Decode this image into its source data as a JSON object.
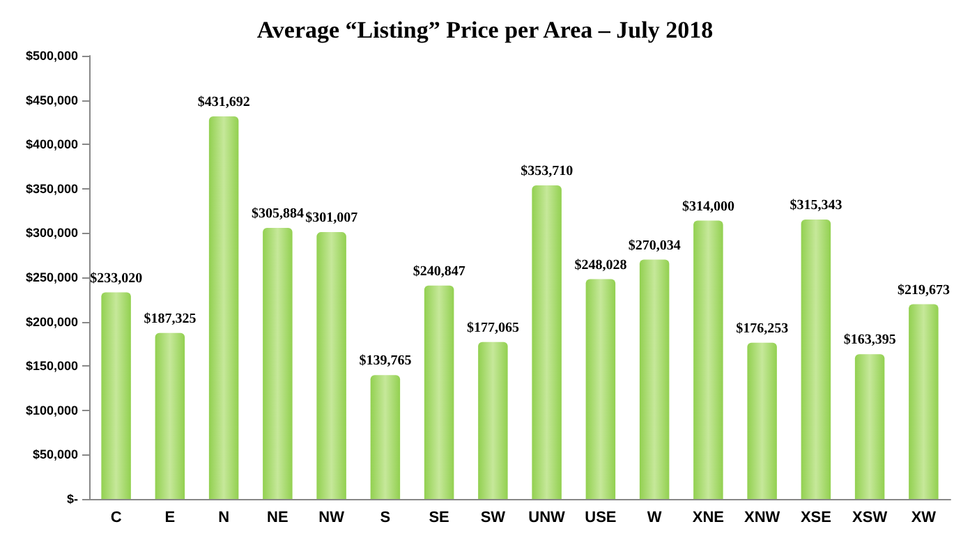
{
  "chart_data": {
    "type": "bar",
    "title": "Average “Listing” Price per Area – July 2018",
    "categories": [
      "C",
      "E",
      "N",
      "NE",
      "NW",
      "S",
      "SE",
      "SW",
      "UNW",
      "USE",
      "W",
      "XNE",
      "XNW",
      "XSE",
      "XSW",
      "XW"
    ],
    "values": [
      233020,
      187325,
      431692,
      305884,
      301007,
      139765,
      240847,
      177065,
      353710,
      248028,
      270034,
      314000,
      176253,
      315343,
      163395,
      219673
    ],
    "value_labels": [
      "$233,020",
      "$187,325",
      "$431,692",
      "$305,884",
      "$301,007",
      "$139,765",
      "$240,847",
      "$177,065",
      "$353,710",
      "$248,028",
      "$270,034",
      "$314,000",
      "$176,253",
      "$315,343",
      "$163,395",
      "$219,673"
    ],
    "color": "#92d050",
    "ylim": [
      0,
      500000
    ],
    "yticks": [
      {
        "value": 0,
        "label": "$-"
      },
      {
        "value": 50000,
        "label": "$50,000"
      },
      {
        "value": 100000,
        "label": "$100,000"
      },
      {
        "value": 150000,
        "label": "$150,000"
      },
      {
        "value": 200000,
        "label": "$200,000"
      },
      {
        "value": 250000,
        "label": "$250,000"
      },
      {
        "value": 300000,
        "label": "$300,000"
      },
      {
        "value": 350000,
        "label": "$350,000"
      },
      {
        "value": 400000,
        "label": "$400,000"
      },
      {
        "value": 450000,
        "label": "$450,000"
      },
      {
        "value": 500000,
        "label": "$500,000"
      }
    ],
    "grid": false
  }
}
